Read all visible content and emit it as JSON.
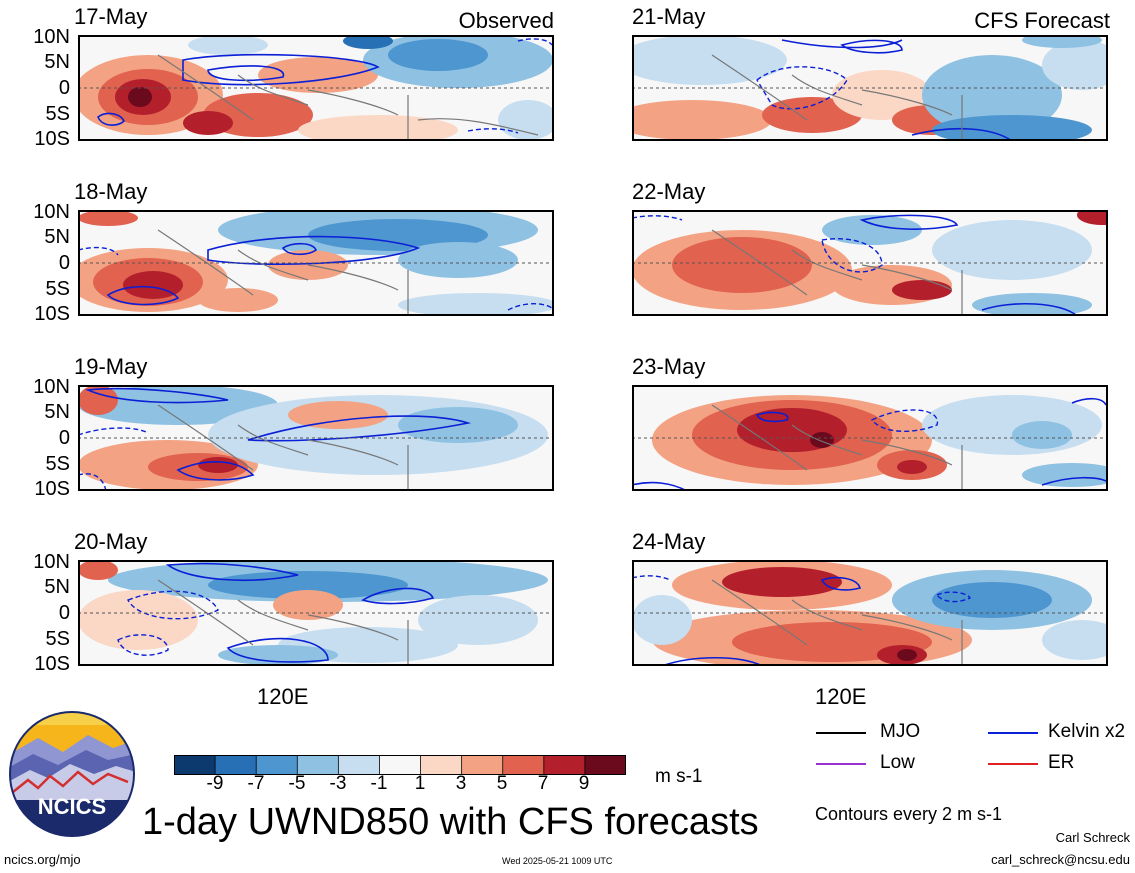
{
  "header": {
    "observed_label": "Observed",
    "forecast_label": "CFS Forecast"
  },
  "panels": {
    "observed": [
      {
        "date": "17-May"
      },
      {
        "date": "18-May"
      },
      {
        "date": "19-May"
      },
      {
        "date": "20-May"
      }
    ],
    "forecast": [
      {
        "date": "21-May"
      },
      {
        "date": "22-May"
      },
      {
        "date": "23-May"
      },
      {
        "date": "24-May"
      }
    ]
  },
  "axes": {
    "lat_labels": [
      "10N",
      "5N",
      "0",
      "5S",
      "10S"
    ],
    "lon_label": "120E"
  },
  "colorbar": {
    "tick_labels": [
      "-9",
      "-7",
      "-5",
      "-3",
      "-1",
      "1",
      "3",
      "5",
      "7",
      "9"
    ],
    "colors": [
      "#0d3a6e",
      "#2870b5",
      "#4d96cf",
      "#8ec1e2",
      "#c6def0",
      "#f7f7f7",
      "#fbd8c6",
      "#f3a383",
      "#e0624f",
      "#b41f2c",
      "#6b0a1d"
    ],
    "unit": "m s-1"
  },
  "legend": {
    "items": [
      {
        "label": "MJO",
        "color": "#000000"
      },
      {
        "label": "Kelvin x2",
        "color": "#0a1fd6"
      },
      {
        "label": "Low",
        "color": "#9b30d0"
      },
      {
        "label": "ER",
        "color": "#e02020"
      }
    ],
    "contours_note": "Contours every 2 m s-1"
  },
  "title": "1-day UWND850 with CFS forecasts",
  "footer": {
    "logo_text": "NCICS",
    "url": "ncics.org/mjo",
    "timestamp": "Wed 2025-05-21 1009 UTC",
    "author": "Carl Schreck",
    "email": "carl_schreck@ncsu.edu"
  }
}
